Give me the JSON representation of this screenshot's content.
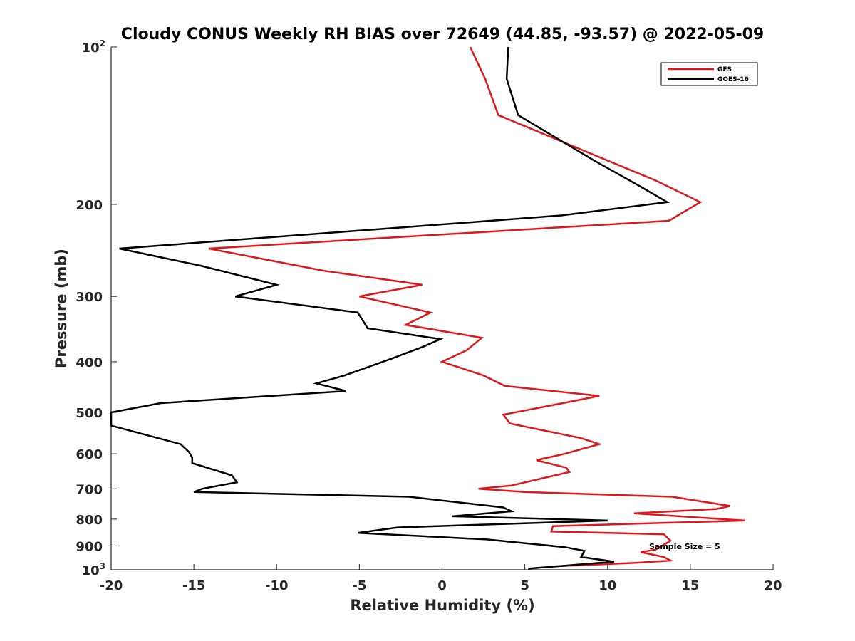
{
  "chart_data": {
    "type": "line",
    "title": "Cloudy CONUS Weekly RH BIAS over 72649 (44.85, -93.57) @ 2022-05-09",
    "xlabel": "Relative Humidity (%)",
    "ylabel": "Pressure (mb)",
    "xlim": [
      -20,
      20
    ],
    "ylim": [
      100,
      1000
    ],
    "y_scale": "log",
    "y_reversed": true,
    "grid": false,
    "legend_position": "top-right",
    "annotation": "Sample Size = 5",
    "x_ticks": [
      "-20",
      "-15",
      "-10",
      "-5",
      "0",
      "5",
      "10",
      "15",
      "20"
    ],
    "y_ticks": [
      {
        "value": 100,
        "base": "10",
        "exp": "2"
      },
      {
        "value": 200,
        "label": "200"
      },
      {
        "value": 300,
        "label": "300"
      },
      {
        "value": 400,
        "label": "400"
      },
      {
        "value": 500,
        "label": "500"
      },
      {
        "value": 600,
        "label": "600"
      },
      {
        "value": 700,
        "label": "700"
      },
      {
        "value": 800,
        "label": "800"
      },
      {
        "value": 900,
        "label": "900"
      },
      {
        "value": 1000,
        "base": "10",
        "exp": "3"
      }
    ],
    "series": [
      {
        "name": "GFS",
        "color": "#e0171a",
        "points": [
          [
            1.7,
            100
          ],
          [
            2.6,
            115
          ],
          [
            3.4,
            135
          ],
          [
            12.9,
            180
          ],
          [
            15.6,
            198
          ],
          [
            13.7,
            215
          ],
          [
            -14.1,
            243
          ],
          [
            -7.1,
            268
          ],
          [
            -1.2,
            285
          ],
          [
            -5.0,
            300
          ],
          [
            -0.7,
            322
          ],
          [
            -2.2,
            340
          ],
          [
            2.4,
            360
          ],
          [
            1.5,
            380
          ],
          [
            0.0,
            400
          ],
          [
            2.5,
            425
          ],
          [
            3.8,
            445
          ],
          [
            9.5,
            465
          ],
          [
            7.3,
            480
          ],
          [
            3.7,
            505
          ],
          [
            4.1,
            525
          ],
          [
            8.4,
            560
          ],
          [
            9.5,
            575
          ],
          [
            7.4,
            600
          ],
          [
            5.7,
            617
          ],
          [
            7.5,
            638
          ],
          [
            7.7,
            650
          ],
          [
            4.2,
            690
          ],
          [
            2.2,
            700
          ],
          [
            5.0,
            710
          ],
          [
            13.9,
            725
          ],
          [
            17.4,
            755
          ],
          [
            16.6,
            765
          ],
          [
            11.6,
            780
          ],
          [
            18.3,
            805
          ],
          [
            6.7,
            825
          ],
          [
            6.6,
            845
          ],
          [
            13.4,
            855
          ],
          [
            13.8,
            880
          ],
          [
            12.9,
            915
          ],
          [
            12.0,
            925
          ],
          [
            13.4,
            945
          ],
          [
            13.8,
            960
          ],
          [
            11.7,
            970
          ],
          [
            8.3,
            980
          ],
          [
            6.7,
            985
          ]
        ]
      },
      {
        "name": "GOES-16",
        "color": "#000000",
        "points": [
          [
            4.0,
            100
          ],
          [
            3.9,
            115
          ],
          [
            4.6,
            135
          ],
          [
            9.2,
            165
          ],
          [
            12.0,
            185
          ],
          [
            13.6,
            198
          ],
          [
            7.2,
            210
          ],
          [
            -19.5,
            243
          ],
          [
            -14.6,
            262
          ],
          [
            -10.0,
            285
          ],
          [
            -12.5,
            300
          ],
          [
            -5.1,
            322
          ],
          [
            -4.5,
            345
          ],
          [
            -0.1,
            362
          ],
          [
            -1.2,
            375
          ],
          [
            -3.1,
            395
          ],
          [
            -5.9,
            425
          ],
          [
            -7.6,
            440
          ],
          [
            -5.8,
            455
          ],
          [
            -17.0,
            480
          ],
          [
            -20.0,
            500
          ],
          [
            -20.0,
            530
          ],
          [
            -15.8,
            575
          ],
          [
            -15.3,
            595
          ],
          [
            -15.1,
            610
          ],
          [
            -15.1,
            625
          ],
          [
            -12.7,
            660
          ],
          [
            -12.4,
            680
          ],
          [
            -14.5,
            700
          ],
          [
            -15.0,
            710
          ],
          [
            -2.0,
            725
          ],
          [
            3.7,
            760
          ],
          [
            4.2,
            773
          ],
          [
            0.6,
            790
          ],
          [
            10.0,
            805
          ],
          [
            -2.7,
            830
          ],
          [
            -5.1,
            850
          ],
          [
            2.7,
            875
          ],
          [
            7.4,
            905
          ],
          [
            8.6,
            920
          ],
          [
            8.4,
            945
          ],
          [
            10.4,
            965
          ],
          [
            5.2,
            995
          ]
        ]
      }
    ]
  }
}
